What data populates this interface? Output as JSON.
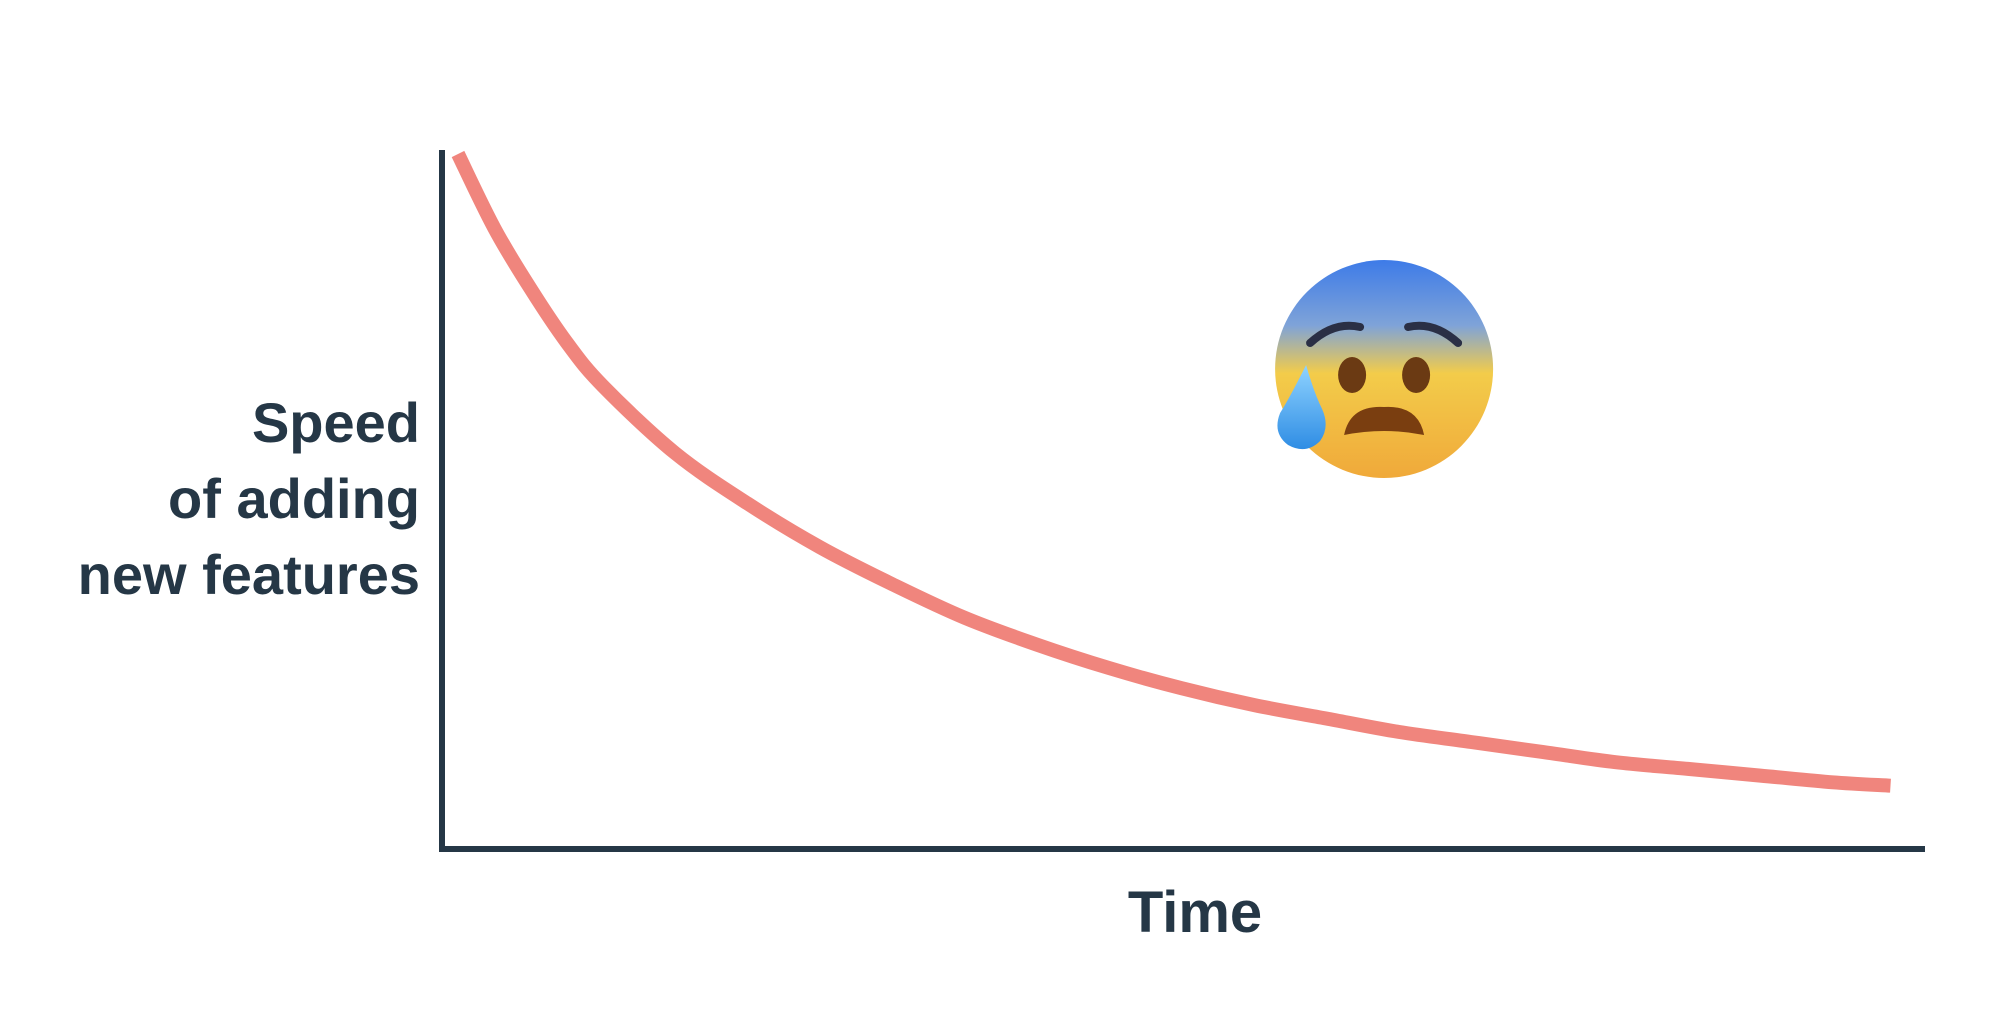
{
  "chart_data": {
    "type": "line",
    "title": "",
    "xlabel": "Time",
    "ylabel_lines": [
      "Speed",
      "of adding",
      "new features"
    ],
    "xlim": [
      0,
      10
    ],
    "ylim": [
      0,
      10
    ],
    "grid": false,
    "series": [
      {
        "name": "speed",
        "color": "#f0857d",
        "x": [
          0,
          0.25,
          0.5,
          0.75,
          1,
          1.5,
          2,
          2.5,
          3,
          3.5,
          4,
          4.5,
          5,
          5.5,
          6,
          6.5,
          7,
          7.5,
          8,
          8.5,
          9,
          9.5,
          9.9
        ],
        "y": [
          10,
          8.9,
          8.0,
          7.2,
          6.55,
          5.55,
          4.8,
          4.15,
          3.6,
          3.1,
          2.7,
          2.35,
          2.05,
          1.8,
          1.6,
          1.4,
          1.25,
          1.1,
          0.95,
          0.85,
          0.75,
          0.65,
          0.6
        ]
      }
    ],
    "annotation": {
      "kind": "anxious-face-with-sweat-emoji",
      "x": 6.4,
      "y": 6.8
    },
    "axis_color": "#253746"
  }
}
